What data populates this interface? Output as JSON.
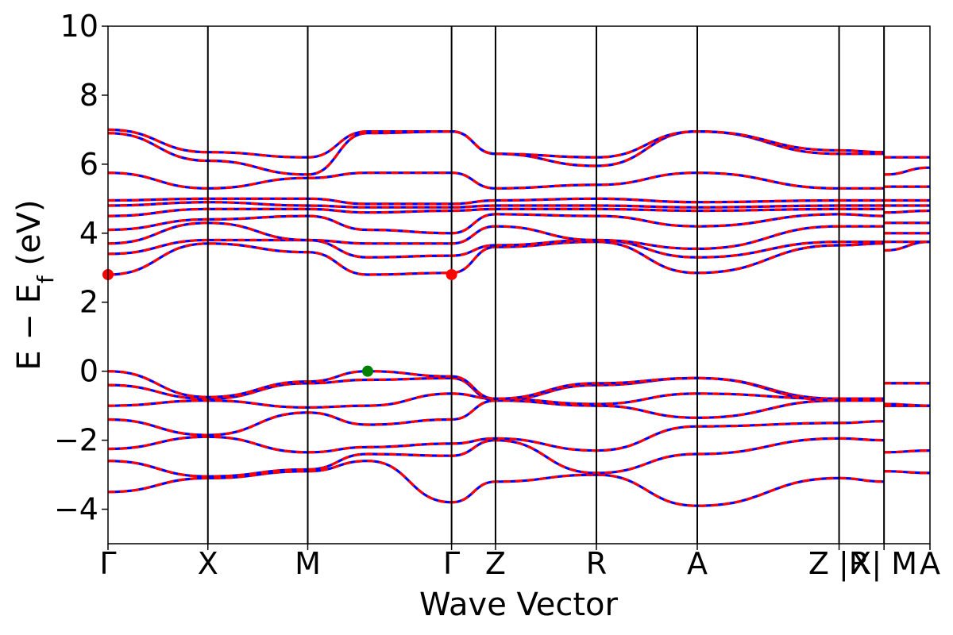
{
  "chart_data": {
    "type": "line",
    "title": "",
    "xlabel": "Wave Vector",
    "ylabel_parts": {
      "main": "E − E",
      "sub": "f",
      "unit": " (eV)"
    },
    "ylim": [
      -5,
      10
    ],
    "yticks": [
      -4,
      -2,
      0,
      2,
      4,
      6,
      8,
      10
    ],
    "ytick_labels": [
      "−4",
      "−2",
      "0",
      "2",
      "4",
      "6",
      "8",
      "10"
    ],
    "xlim": [
      0,
      8.23
    ],
    "kpoints": [
      {
        "label": "Γ",
        "x": 0.0
      },
      {
        "label": "X",
        "x": 1.0
      },
      {
        "label": "M",
        "x": 2.0
      },
      {
        "label": "Γ",
        "x": 3.44
      },
      {
        "label": "Z",
        "x": 3.88
      },
      {
        "label": "R",
        "x": 4.89
      },
      {
        "label": "A",
        "x": 5.9
      },
      {
        "label": "Z |R",
        "x": 7.32
      },
      {
        "label": "X| M",
        "x": 7.77
      },
      {
        "label": "A",
        "x": 8.23
      }
    ],
    "segment_breaks": [
      7.32,
      7.77
    ],
    "grid": false,
    "legend": "none",
    "colors": {
      "band_up": "#0000ff",
      "band_down": "#ff0000",
      "vbm_marker": "#008000",
      "cbm_marker": "#ff0000"
    },
    "vbm": {
      "x": 2.6,
      "energy": 0.0
    },
    "cbm": [
      {
        "x": 0.0,
        "energy": 2.8
      },
      {
        "x": 3.44,
        "energy": 2.8
      }
    ],
    "bands": [
      {
        "name": "v1",
        "energies": [
          -3.5,
          -3.1,
          -2.9,
          -2.6,
          -3.8,
          -3.2,
          -3.0,
          -3.9,
          -3.1,
          -3.2,
          -2.9,
          -2.95
        ]
      },
      {
        "name": "v2",
        "energies": [
          -2.6,
          -3.05,
          -2.85,
          -2.4,
          -2.45,
          -2.0,
          -2.95,
          -2.4,
          -1.95,
          -2.0,
          -2.35,
          -2.3
        ]
      },
      {
        "name": "v3",
        "energies": [
          -2.25,
          -1.9,
          -2.35,
          -2.2,
          -2.1,
          -1.95,
          -2.3,
          -1.6,
          -1.5,
          -1.45,
          -1.0,
          -1.0
        ]
      },
      {
        "name": "v4",
        "energies": [
          -1.4,
          -1.85,
          -1.2,
          -1.55,
          -1.4,
          -0.85,
          -1.0,
          -1.35,
          -0.85,
          -0.8,
          -0.35,
          -0.35
        ]
      },
      {
        "name": "v5",
        "energies": [
          -1.0,
          -0.85,
          -1.05,
          -1.0,
          -0.65,
          -0.8,
          -0.95,
          -0.65,
          -0.8,
          -0.8,
          -0.35,
          -0.35
        ]
      },
      {
        "name": "v6",
        "energies": [
          -0.4,
          -0.8,
          -0.35,
          -0.25,
          -0.2,
          -0.85,
          -0.4,
          -0.2,
          -0.8,
          -0.8,
          -0.95,
          -1.0
        ]
      },
      {
        "name": "v7",
        "energies": [
          0.0,
          -0.75,
          -0.3,
          0.0,
          -0.15,
          -0.8,
          -0.35,
          -0.2,
          -0.85,
          -0.85,
          -1.0,
          -1.0
        ]
      },
      {
        "name": "c1",
        "energies": [
          2.8,
          3.7,
          3.45,
          2.8,
          2.85,
          3.6,
          3.75,
          2.85,
          3.65,
          3.7,
          3.5,
          3.75
        ]
      },
      {
        "name": "c2",
        "energies": [
          3.4,
          3.8,
          3.8,
          3.3,
          3.35,
          3.65,
          3.8,
          3.3,
          3.75,
          3.75,
          3.75,
          3.75
        ]
      },
      {
        "name": "c3",
        "energies": [
          3.7,
          4.3,
          3.8,
          3.7,
          3.7,
          4.2,
          3.8,
          3.55,
          4.2,
          4.2,
          4.0,
          4.0
        ]
      },
      {
        "name": "c4",
        "energies": [
          4.1,
          4.4,
          4.5,
          4.1,
          4.0,
          4.55,
          4.5,
          4.2,
          4.55,
          4.5,
          4.3,
          4.3
        ]
      },
      {
        "name": "c5",
        "energies": [
          4.5,
          4.7,
          4.7,
          4.6,
          4.65,
          4.7,
          4.7,
          4.65,
          4.7,
          4.7,
          4.6,
          4.65
        ]
      },
      {
        "name": "c6",
        "energies": [
          4.8,
          4.9,
          4.8,
          4.75,
          4.75,
          4.8,
          4.8,
          4.75,
          4.8,
          4.8,
          4.8,
          4.8
        ]
      },
      {
        "name": "c7",
        "energies": [
          4.95,
          5.0,
          5.0,
          4.85,
          4.85,
          4.95,
          5.0,
          4.9,
          4.95,
          4.95,
          4.95,
          4.95
        ]
      },
      {
        "name": "c8",
        "energies": [
          5.75,
          5.3,
          5.6,
          5.75,
          5.75,
          5.3,
          5.4,
          5.75,
          5.3,
          5.3,
          5.35,
          5.35
        ]
      },
      {
        "name": "c9",
        "energies": [
          6.9,
          6.1,
          5.7,
          6.9,
          6.95,
          6.3,
          5.95,
          6.95,
          6.3,
          6.3,
          5.7,
          5.9
        ]
      },
      {
        "name": "c10",
        "energies": [
          7.0,
          6.35,
          6.2,
          6.95,
          6.95,
          6.3,
          6.2,
          6.95,
          6.4,
          6.35,
          6.2,
          6.2
        ]
      }
    ]
  }
}
